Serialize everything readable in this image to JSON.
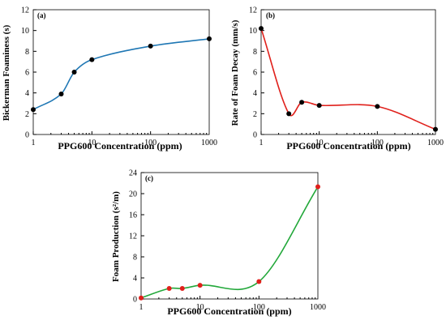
{
  "chart_data": [
    {
      "type": "scatter",
      "panel_label": "(a)",
      "xlabel": "PPG600 Concentration (ppm)",
      "ylabel": "Bickerman Foaminess (s)",
      "xscale": "log",
      "xlim": [
        1,
        1000
      ],
      "ylim": [
        0,
        12
      ],
      "xticks": [
        "1",
        "10",
        "100",
        "1000"
      ],
      "yticks": [
        "0",
        "2",
        "4",
        "6",
        "8",
        "10",
        "12"
      ],
      "grid": false,
      "line_color": "#1f77b4",
      "marker_color": "#000000",
      "x": [
        1,
        3,
        5,
        10,
        100,
        1000
      ],
      "y": [
        2.4,
        3.9,
        6.0,
        7.2,
        8.5,
        9.2
      ]
    },
    {
      "type": "scatter",
      "panel_label": "(b)",
      "xlabel": "PPG600 Concentration (ppm)",
      "ylabel": "Rate of Foam Decay (mm/s)",
      "xscale": "log",
      "xlim": [
        1,
        1000
      ],
      "ylim": [
        0,
        12
      ],
      "xticks": [
        "1",
        "10",
        "100",
        "1000"
      ],
      "yticks": [
        "0",
        "2",
        "4",
        "6",
        "8",
        "10",
        "12"
      ],
      "grid": false,
      "line_color": "#e0201b",
      "marker_color": "#000000",
      "x": [
        1,
        3,
        5,
        10,
        100,
        1000
      ],
      "y": [
        10.2,
        2.0,
        3.1,
        2.8,
        2.7,
        0.5
      ]
    },
    {
      "type": "scatter",
      "panel_label": "(c)",
      "xlabel": "PPG600 Concentration (ppm)",
      "ylabel": "Foam Production (s²/m)",
      "xscale": "log",
      "xlim": [
        1,
        1000
      ],
      "ylim": [
        0,
        24
      ],
      "xticks": [
        "1",
        "10",
        "100",
        "1000"
      ],
      "yticks": [
        "0",
        "4",
        "8",
        "12",
        "16",
        "20",
        "24"
      ],
      "grid": false,
      "line_color": "#22a83a",
      "marker_color": "#e0201b",
      "x": [
        1,
        3,
        5,
        10,
        100,
        1000
      ],
      "y": [
        0.2,
        2.0,
        2.0,
        2.6,
        3.3,
        21.3
      ]
    }
  ]
}
